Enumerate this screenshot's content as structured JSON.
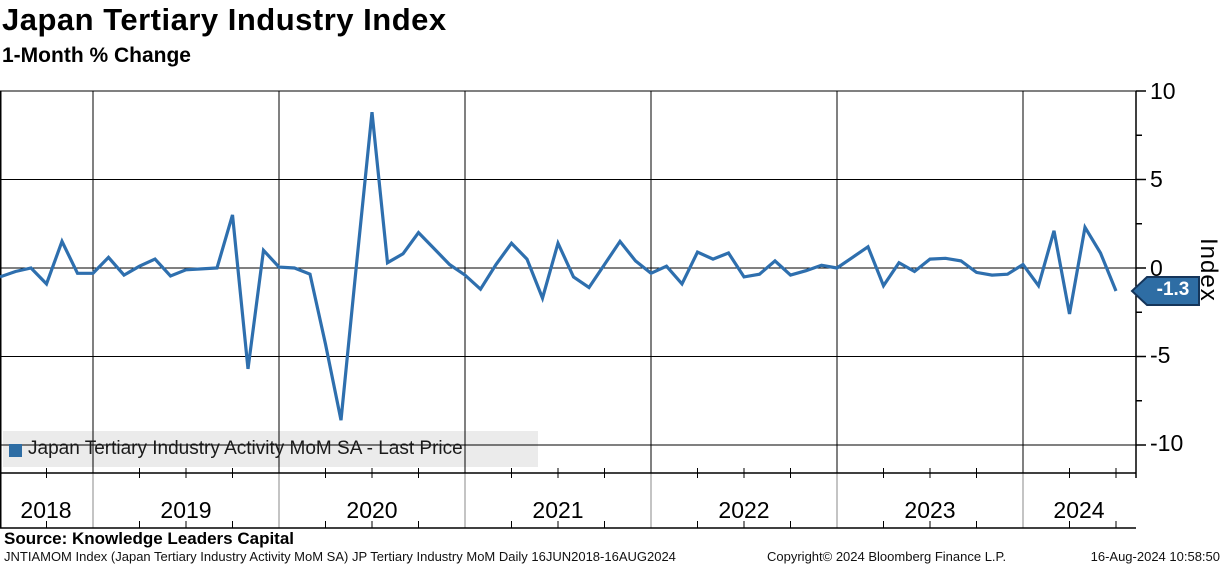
{
  "title": "Japan Tertiary Industry Index",
  "subtitle": "1-Month % Change",
  "legend": {
    "label": "Japan Tertiary Industry Activity MoM SA - Last Price",
    "swatch_color": "#2E6DA4"
  },
  "y_axis": {
    "label": "Index",
    "tick_labels": [
      "10",
      "5",
      "0",
      "-5",
      "-10"
    ],
    "minor_step": 2.5
  },
  "x_axis": {
    "year_labels": [
      "2018",
      "2019",
      "2020",
      "2021",
      "2022",
      "2023",
      "2024"
    ]
  },
  "last_price": {
    "value": "-1.3",
    "badge_color": "#2E6DA4",
    "badge_border": "#15355A"
  },
  "source": {
    "label": "Source: Knowledge Leaders Capital"
  },
  "footer": {
    "left": "JNTIAMOM Index (Japan Tertiary Industry Activity MoM SA) JP Tertiary Industry MoM  Daily 16JUN2018-16AUG2024",
    "center": "Copyright© 2024 Bloomberg Finance L.P.",
    "right": "16-Aug-2024 10:58:50"
  },
  "chart_data": {
    "type": "line",
    "title": "Japan Tertiary Industry Index",
    "subtitle": "1-Month % Change",
    "series": [
      {
        "name": "Japan Tertiary Industry Activity MoM SA - Last Price",
        "color": "#2E6FAE",
        "frequency": "monthly",
        "x_start": "2018-06",
        "x_end": "2024-06",
        "values": [
          -0.5,
          -0.2,
          0.0,
          -0.9,
          1.5,
          -0.3,
          -0.3,
          0.6,
          -0.4,
          0.1,
          0.5,
          -0.45,
          -0.1,
          -0.05,
          0.0,
          3.0,
          -5.7,
          1.0,
          0.05,
          0.0,
          -0.35,
          -4.3,
          -8.6,
          0.2,
          8.8,
          0.3,
          0.8,
          2.0,
          1.1,
          0.2,
          -0.4,
          -1.2,
          0.2,
          1.4,
          0.5,
          -1.7,
          1.4,
          -0.5,
          -1.1,
          0.2,
          1.5,
          0.4,
          -0.3,
          0.1,
          -0.9,
          0.9,
          0.5,
          0.85,
          -0.5,
          -0.35,
          0.4,
          -0.4,
          -0.15,
          0.15,
          0.0,
          0.6,
          1.2,
          -1.0,
          0.3,
          -0.2,
          0.5,
          0.55,
          0.4,
          -0.25,
          -0.4,
          -0.35,
          0.2,
          -1.0,
          2.1,
          -2.6,
          2.3,
          0.85,
          -1.3
        ]
      }
    ],
    "last_price": -1.3,
    "ylabel": "Index",
    "y_ticks": [
      10,
      5,
      0,
      -5,
      -10
    ],
    "ylim": [
      -11.6,
      10.0
    ],
    "x_tick_labels": [
      "2018",
      "2019",
      "2020",
      "2021",
      "2022",
      "2023",
      "2024"
    ],
    "x_range": "16JUN2018-16AUG2024",
    "grid": true,
    "legend_position": "bottom-left"
  }
}
